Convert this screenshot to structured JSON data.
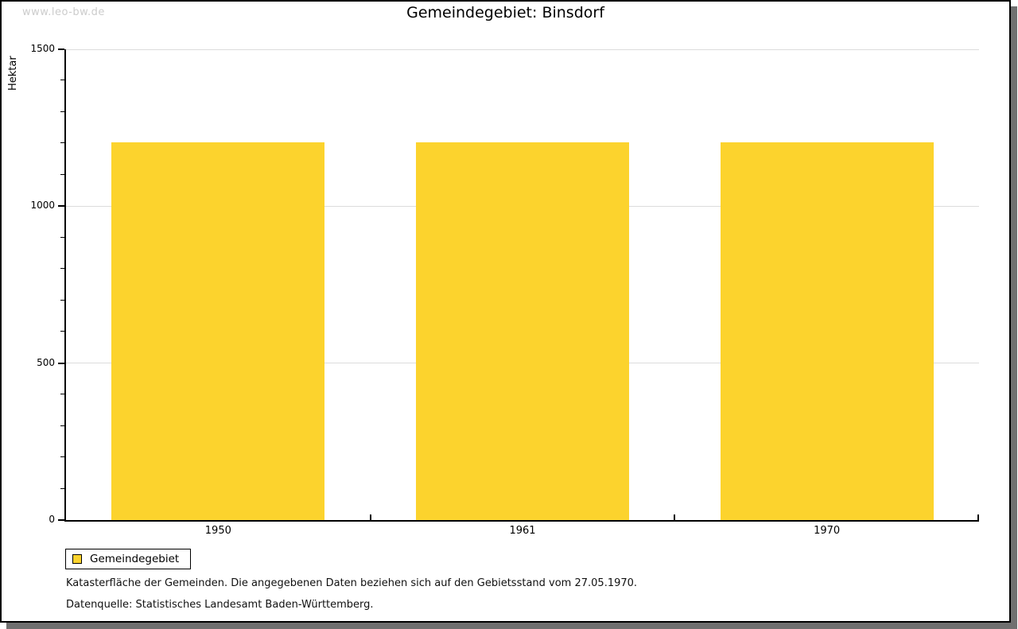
{
  "watermark": "www.leo-bw.de",
  "chart_data": {
    "type": "bar",
    "title": "Gemeindegebiet: Binsdorf",
    "xlabel": "",
    "ylabel": "Hektar",
    "categories": [
      "1950",
      "1961",
      "1970"
    ],
    "values": [
      1203,
      1203,
      1203
    ],
    "ylim": [
      0,
      1500
    ],
    "yticks": [
      0,
      500,
      1000,
      1500
    ],
    "ytick_minor_step": 100,
    "grid": "horizontal-major-lines",
    "legend": {
      "position": "bottom-left",
      "entries": [
        "Gemeindegebiet"
      ]
    },
    "bar_color": "#FCD32D"
  },
  "notes": [
    "Katasterfläche der Gemeinden. Die angegebenen Daten beziehen sich auf den Gebietsstand vom 27.05.1970.",
    "Datenquelle: Statistisches Landesamt Baden-Württemberg."
  ],
  "colors": {
    "bar": "#FCD32D",
    "gridline": "#DCDCDC",
    "axis": "#000000",
    "watermark": "#CCCCCC",
    "frame_shadow": "#707070",
    "background": "#FFFFFF"
  }
}
